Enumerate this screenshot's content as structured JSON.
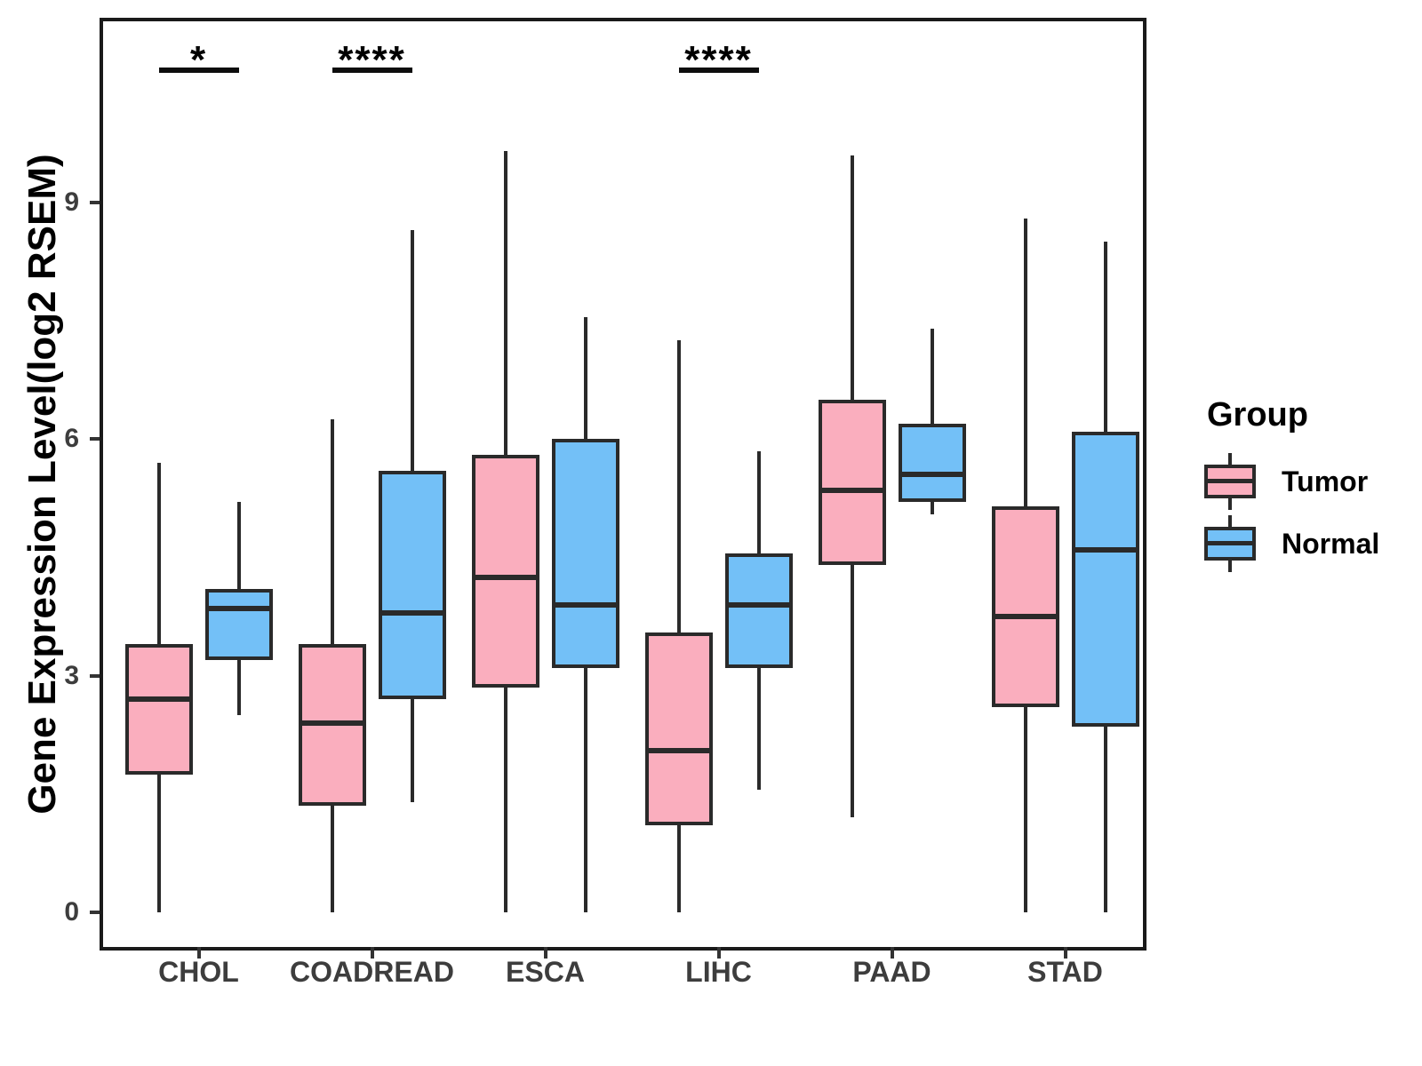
{
  "figure": {
    "y_axis": {
      "title": "Gene Expression Level(log2 RSEM)",
      "tick_labels": [
        "0",
        "3",
        "6",
        "9"
      ]
    },
    "x_axis": {
      "tick_labels": [
        "CHOL",
        "COADREAD",
        "ESCA",
        "LIHC",
        "PAAD",
        "STAD"
      ]
    },
    "legend": {
      "title": "Group",
      "entries": [
        {
          "label": "Tumor",
          "color": "#FAAEBE"
        },
        {
          "label": "Normal",
          "color": "#73C0F7"
        }
      ]
    },
    "colors": {
      "tumor_fill": "#FAAEBE",
      "normal_fill": "#73C0F7",
      "box_border": "#2a2a2a",
      "panel_border": "#1a1a1a",
      "tick_mark": "#333333",
      "tick_label": "#3d3d3d",
      "significance": "#0d0d0d"
    }
  },
  "chart_data": {
    "type": "boxplot",
    "title": "",
    "xlabel": "",
    "ylabel": "Gene Expression Level(log2 RSEM)",
    "ylim": [
      0,
      9.65
    ],
    "yticks": [
      0,
      3,
      6,
      9
    ],
    "grid": false,
    "legend_position": "right",
    "categories": [
      "CHOL",
      "COADREAD",
      "ESCA",
      "LIHC",
      "PAAD",
      "STAD"
    ],
    "series": [
      {
        "name": "Tumor",
        "color": "#FAAEBE",
        "boxes": [
          {
            "category": "CHOL",
            "min": 0,
            "q1": 1.75,
            "median": 2.7,
            "q3": 3.4,
            "max": 5.7
          },
          {
            "category": "COADREAD",
            "min": 0,
            "q1": 1.35,
            "median": 2.4,
            "q3": 3.4,
            "max": 6.25
          },
          {
            "category": "ESCA",
            "min": 0,
            "q1": 2.85,
            "median": 4.25,
            "q3": 5.8,
            "max": 9.65
          },
          {
            "category": "LIHC",
            "min": 0,
            "q1": 1.1,
            "median": 2.05,
            "q3": 3.55,
            "max": 7.25
          },
          {
            "category": "PAAD",
            "min": 1.2,
            "q1": 4.4,
            "median": 5.35,
            "q3": 6.5,
            "max": 9.6
          },
          {
            "category": "STAD",
            "min": 0,
            "q1": 2.6,
            "median": 3.75,
            "q3": 5.15,
            "max": 8.8
          }
        ]
      },
      {
        "name": "Normal",
        "color": "#73C0F7",
        "boxes": [
          {
            "category": "CHOL",
            "min": 2.5,
            "q1": 3.2,
            "median": 3.85,
            "q3": 4.1,
            "max": 5.2
          },
          {
            "category": "COADREAD",
            "min": 1.4,
            "q1": 2.7,
            "median": 3.8,
            "q3": 5.6,
            "max": 8.65
          },
          {
            "category": "ESCA",
            "min": 0,
            "q1": 3.1,
            "median": 3.9,
            "q3": 6.0,
            "max": 7.55
          },
          {
            "category": "LIHC",
            "min": 1.55,
            "q1": 3.1,
            "median": 3.9,
            "q3": 4.55,
            "max": 5.85
          },
          {
            "category": "PAAD",
            "min": 5.05,
            "q1": 5.2,
            "median": 5.55,
            "q3": 6.2,
            "max": 7.4
          },
          {
            "category": "STAD",
            "min": 0,
            "q1": 2.35,
            "median": 4.6,
            "q3": 6.1,
            "max": 8.5
          }
        ]
      }
    ],
    "significance_annotations": [
      {
        "category": "CHOL",
        "label": "*"
      },
      {
        "category": "COADREAD",
        "label": "****"
      },
      {
        "category": "LIHC",
        "label": "****"
      }
    ]
  }
}
